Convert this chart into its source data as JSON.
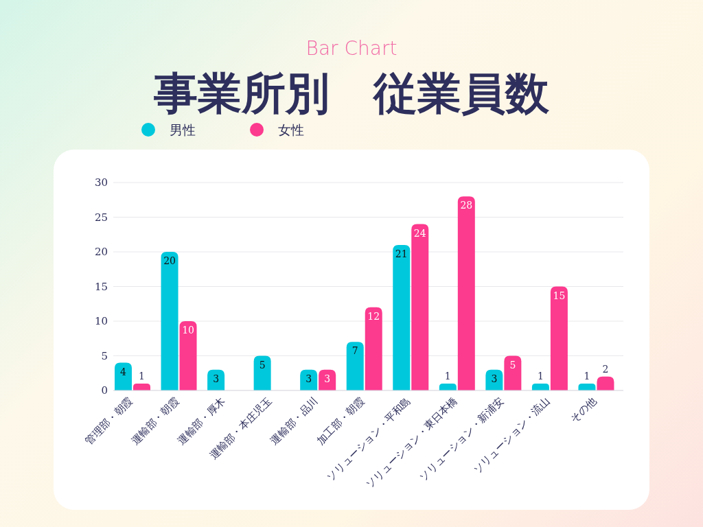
{
  "chart_data": {
    "type": "bar",
    "subtitle": "Bar Chart",
    "title": "事業所別　従業員数",
    "categories": [
      "管理部・朝霞",
      "運輸部・朝霞",
      "運輸部・厚木",
      "運輸部・本庄児玉",
      "運輸部・品川",
      "加工部・朝霞",
      "ソリューション・平和島",
      "ソリューション・東日本橋",
      "ソリューション・新浦安",
      "ソリューション・流山",
      "その他"
    ],
    "series": [
      {
        "name": "男性",
        "color": "#00c8dc",
        "values": [
          4,
          20,
          3,
          5,
          3,
          7,
          21,
          1,
          3,
          1,
          1
        ]
      },
      {
        "name": "女性",
        "color": "#fc3a8e",
        "values": [
          1,
          10,
          null,
          null,
          3,
          12,
          24,
          28,
          5,
          15,
          2
        ]
      }
    ],
    "ylim": [
      0,
      30
    ],
    "yticks": [
      0,
      5,
      10,
      15,
      20,
      25,
      30
    ],
    "grid": "y",
    "legend": "top",
    "data_labels": true
  }
}
